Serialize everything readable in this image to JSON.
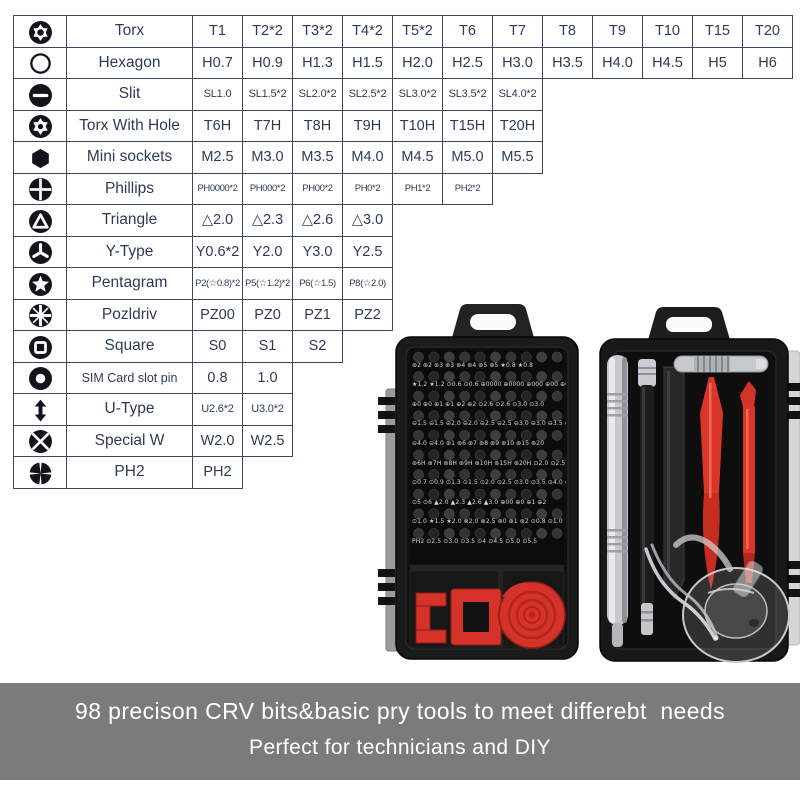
{
  "table": {
    "rows": [
      {
        "icon": "torx-icon",
        "name": "Torx",
        "values": [
          "T1",
          "T2*2",
          "T3*2",
          "T4*2",
          "T5*2",
          "T6",
          "T7",
          "T8",
          "T9",
          "T10",
          "T15",
          "T20"
        ]
      },
      {
        "icon": "hexagon-icon",
        "name": "Hexagon",
        "values": [
          "H0.7",
          "H0.9",
          "H1.3",
          "H1.5",
          "H2.0",
          "H2.5",
          "H3.0",
          "H3.5",
          "H4.0",
          "H4.5",
          "H5",
          "H6"
        ]
      },
      {
        "icon": "slit-icon",
        "name": "Slit",
        "values": [
          "SL1.0",
          "SL1.5*2",
          "SL2.0*2",
          "SL2.5*2",
          "SL3.0*2",
          "SL3.5*2",
          "SL4.0*2"
        ],
        "size": "small"
      },
      {
        "icon": "torx-with-hole-icon",
        "name": "Torx With Hole",
        "values": [
          "T6H",
          "T7H",
          "T8H",
          "T9H",
          "T10H",
          "T15H",
          "T20H"
        ]
      },
      {
        "icon": "mini-socket-icon",
        "name": "Mini sockets",
        "values": [
          "M2.5",
          "M3.0",
          "M3.5",
          "M4.0",
          "M4.5",
          "M5.0",
          "M5.5"
        ]
      },
      {
        "icon": "phillips-icon",
        "name": "Phillips",
        "values": [
          "PH0000*2",
          "PH000*2",
          "PH00*2",
          "PH0*2",
          "PH1*2",
          "PH2*2"
        ],
        "size": "xsmall"
      },
      {
        "icon": "triangle-icon",
        "name": "Triangle",
        "values": [
          "△2.0",
          "△2.3",
          "△2.6",
          "△3.0"
        ]
      },
      {
        "icon": "y-type-icon",
        "name": "Y-Type",
        "values": [
          "Y0.6*2",
          "Y2.0",
          "Y3.0",
          "Y2.5"
        ]
      },
      {
        "icon": "pentagram-icon",
        "name": "Pentagram",
        "values": [
          "P2(☆0.8)*2",
          "P5(☆1.2)*2",
          "P6(☆1.5)",
          "P8(☆2.0)"
        ],
        "size": "xsmall"
      },
      {
        "icon": "pozidriv-icon",
        "name": "Pozldriv",
        "values": [
          "PZ00",
          "PZ0",
          "PZ1",
          "PZ2"
        ]
      },
      {
        "icon": "square-icon",
        "name": "Square",
        "values": [
          "S0",
          "S1",
          "S2"
        ]
      },
      {
        "icon": "sim-pin-icon",
        "name": "SIM Card slot pin",
        "values": [
          "0.8",
          "1.0"
        ],
        "name_small": true
      },
      {
        "icon": "u-type-icon",
        "name": "U-Type",
        "values": [
          "U2.6*2",
          "U3.0*2"
        ],
        "size": "small"
      },
      {
        "icon": "special-w-icon",
        "name": "Special W",
        "values": [
          "W2.0",
          "W2.5"
        ]
      },
      {
        "icon": "ph2-icon",
        "name": "PH2",
        "values": [
          "PH2"
        ]
      }
    ]
  },
  "photo": {
    "bit_row_labels": [
      "⊛2 ⊛2 ⊛3 ⊛3 ⊛4 ⊛4 ⊛5 ⊛5 ★0.8 ★0.8",
      "★1.2 ★1.2 ⊙0.6 ⊙0.6 ⊕0000 ⊕0000 ⊕000 ⊕00 ⊕00",
      "⊕0 ⊕0 ⊕1 ⊕1 ⊕2 ⊕2 ⊙2.6 ⊙2.6 ⊙3.0 ⊙3.0",
      "⊖1.5 ⊖1.5 ⊖2.0 ⊖2.0 ⊖2.5 ⊖2.5 ⊖3.0 ⊖3.0 ⊖3.5 ⊖3.5",
      "⊖4.0 ⊖4.0 ⊛1 ⊛6 ⊛7 ⊛8 ⊛9 ⊛10 ⊛15 ⊛20",
      "⊛6H ⊛7H ⊛8H ⊛9H ⊛10H ⊛15H ⊛20H ⊙2.0 ⊙2.5 ⊙3.0",
      "⊙0.7 ⊙0.9 ⊙1.3 ⊙1.5 ⊙2.0 ⊙2.5 ⊙3.0 ⊙3.5 ⊙4.0 ⊙4.5",
      "⊙5 ⊙6 ▲2.0 ▲2.3 ▲2.6 ▲3.0 ⊕00 ⊕0 ⊕1 ⊕2",
      "⊙1.0 ★1.5 ★2.0 ⊗2.0 ⊗2.5 ⊛0 ⊛1 ⊛2 ⊙0.8 ⊙1.0",
      "PH2 ⊙2.5 ⊙3.0 ⊙3.5 ⊙4 ⊙4.5 ⊙5.0 ⊙5.5"
    ]
  },
  "banner": {
    "line1": "98 precison CRV bits&basic pry tools to meet differebt  needs",
    "line2": "Perfect for technicians and DIY"
  },
  "colors": {
    "table_ink": "#2e3a56",
    "table_border": "#3a4665",
    "banner_bg": "#7b7b7b",
    "banner_text": "#ffffff",
    "red_tool": "#d5322a",
    "case_black": "#161616",
    "silver": "#c6c9cd"
  }
}
